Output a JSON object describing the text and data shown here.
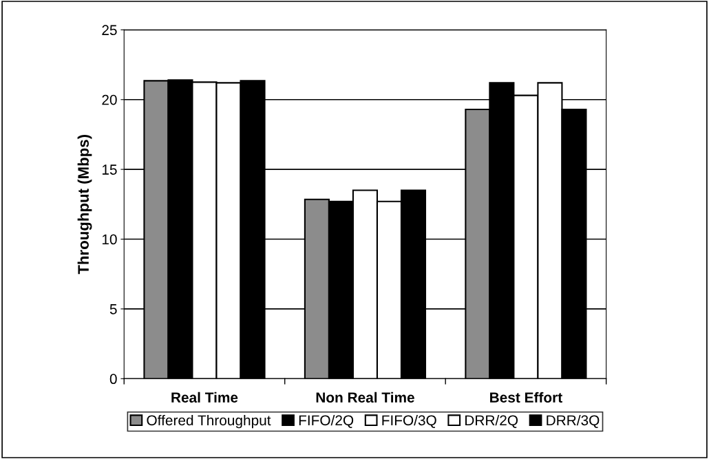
{
  "chart_data": {
    "type": "bar",
    "ylabel": "Throughput (Mbps)",
    "categories": [
      "Real Time",
      "Non Real Time",
      "Best Effort"
    ],
    "series": [
      {
        "name": "Offered Throughput",
        "color": "#8c8c8c",
        "values": [
          21.35,
          12.85,
          19.3
        ]
      },
      {
        "name": "FIFO/2Q",
        "color": "#000000",
        "values": [
          21.4,
          12.7,
          21.2
        ]
      },
      {
        "name": "FIFO/3Q",
        "color": "#ffffff",
        "values": [
          21.25,
          13.5,
          20.3
        ]
      },
      {
        "name": "DRR/2Q",
        "color": "#ffffff",
        "values": [
          21.2,
          12.7,
          21.2
        ]
      },
      {
        "name": "DRR/3Q",
        "color": "#000000",
        "values": [
          21.35,
          13.5,
          19.3
        ]
      }
    ],
    "ylim": [
      0,
      25
    ],
    "yticks": [
      0,
      5,
      10,
      15,
      20,
      25
    ],
    "grid": "y",
    "legend": "bottom"
  }
}
